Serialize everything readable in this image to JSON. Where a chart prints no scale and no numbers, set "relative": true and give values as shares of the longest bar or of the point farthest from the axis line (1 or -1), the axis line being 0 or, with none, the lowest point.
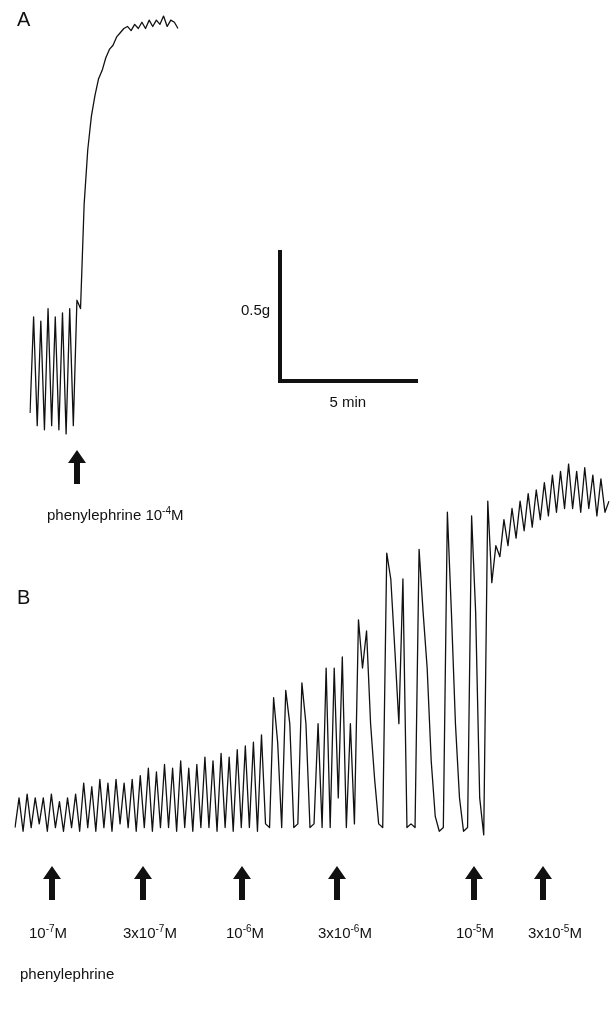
{
  "chart_data": [
    {
      "type": "line",
      "title": "A",
      "relative": true,
      "color": "#111111",
      "categories": [
        null,
        null,
        null,
        null,
        null,
        null,
        null,
        null,
        null,
        null,
        null,
        null,
        null,
        null,
        null,
        null,
        null,
        null,
        null,
        null,
        null,
        null,
        null,
        null,
        null,
        null,
        null,
        null,
        null,
        null,
        null,
        null,
        null,
        null,
        null,
        null,
        null,
        null,
        null,
        null,
        null,
        null
      ],
      "values": [
        0.05,
        0.28,
        0.02,
        0.27,
        0.01,
        0.3,
        0.02,
        0.28,
        0.01,
        0.29,
        0.0,
        0.3,
        0.02,
        0.32,
        0.3,
        0.55,
        0.68,
        0.76,
        0.81,
        0.85,
        0.87,
        0.9,
        0.92,
        0.93,
        0.95,
        0.96,
        0.97,
        0.975,
        0.965,
        0.98,
        0.97,
        0.985,
        0.97,
        0.99,
        0.975,
        0.99,
        0.98,
        1.0,
        0.975,
        0.99,
        0.985,
        0.97
      ],
      "annotations": [
        "phenylephrine 10$^{-4}$M",
        "0.5g",
        "5 min"
      ]
    },
    {
      "type": "line",
      "title": "B",
      "relative": true,
      "color": "#111111",
      "categories": [
        null,
        null,
        null,
        null,
        null,
        null,
        null,
        null,
        null,
        null,
        null,
        null,
        null,
        null,
        null,
        null,
        null,
        null,
        null,
        null,
        null,
        null,
        null,
        null,
        null,
        null,
        null,
        null,
        null,
        null,
        null,
        null,
        null,
        null,
        null,
        null,
        null,
        null,
        null,
        null,
        null,
        null,
        null,
        null,
        null,
        null,
        null,
        null,
        null,
        null,
        null,
        null,
        null,
        null,
        null,
        null,
        null,
        null,
        null,
        null,
        null,
        null,
        null,
        null,
        null,
        null,
        null,
        null,
        null,
        null,
        null,
        null,
        null,
        null,
        null,
        null,
        null,
        null,
        null,
        null,
        null,
        null,
        null,
        null,
        null,
        null,
        null,
        null,
        null,
        null,
        null,
        null,
        null,
        null,
        null,
        null,
        null,
        null,
        null,
        null,
        null,
        null,
        null,
        null,
        null,
        null,
        null,
        null,
        null,
        null,
        null,
        null,
        null,
        null,
        null,
        null,
        null,
        null,
        null,
        null,
        null,
        null,
        null,
        null,
        null,
        null,
        null,
        null,
        null,
        null,
        null,
        null,
        null,
        null,
        null,
        null,
        null,
        null,
        null,
        null,
        null,
        null,
        null,
        null,
        null,
        null,
        null,
        null
      ],
      "values": [
        0.02,
        0.1,
        0.01,
        0.11,
        0.02,
        0.1,
        0.03,
        0.1,
        0.01,
        0.11,
        0.02,
        0.09,
        0.01,
        0.1,
        0.02,
        0.11,
        0.01,
        0.14,
        0.02,
        0.13,
        0.01,
        0.15,
        0.02,
        0.14,
        0.01,
        0.15,
        0.03,
        0.14,
        0.02,
        0.15,
        0.01,
        0.16,
        0.02,
        0.18,
        0.01,
        0.17,
        0.02,
        0.19,
        0.02,
        0.18,
        0.01,
        0.2,
        0.02,
        0.18,
        0.01,
        0.19,
        0.02,
        0.21,
        0.02,
        0.2,
        0.01,
        0.22,
        0.02,
        0.21,
        0.01,
        0.23,
        0.02,
        0.24,
        0.02,
        0.25,
        0.01,
        0.27,
        0.03,
        0.02,
        0.37,
        0.25,
        0.02,
        0.39,
        0.3,
        0.02,
        0.03,
        0.41,
        0.3,
        0.02,
        0.03,
        0.3,
        0.02,
        0.45,
        0.02,
        0.45,
        0.1,
        0.48,
        0.02,
        0.3,
        0.03,
        0.58,
        0.45,
        0.55,
        0.3,
        0.15,
        0.03,
        0.02,
        0.76,
        0.69,
        0.5,
        0.3,
        0.69,
        0.02,
        0.03,
        0.02,
        0.77,
        0.6,
        0.45,
        0.2,
        0.05,
        0.01,
        0.02,
        0.87,
        0.6,
        0.3,
        0.1,
        0.01,
        0.02,
        0.86,
        0.6,
        0.1,
        0.0,
        0.9,
        0.68,
        0.78,
        0.75,
        0.85,
        0.78,
        0.88,
        0.8,
        0.9,
        0.82,
        0.92,
        0.83,
        0.93,
        0.85,
        0.95,
        0.86,
        0.97,
        0.87,
        0.98,
        0.88,
        1.0,
        0.88,
        0.98,
        0.87,
        0.99,
        0.88,
        0.97,
        0.86,
        0.96,
        0.87,
        0.9
      ],
      "annotations": [
        "10$^{-7}$M",
        "3x10$^{-7}$M",
        "10$^{-6}$M",
        "3x10$^{-6}$M",
        "10$^{-5}$M",
        "3x10$^{-5}$M",
        "phenylephrine"
      ]
    }
  ]
}
